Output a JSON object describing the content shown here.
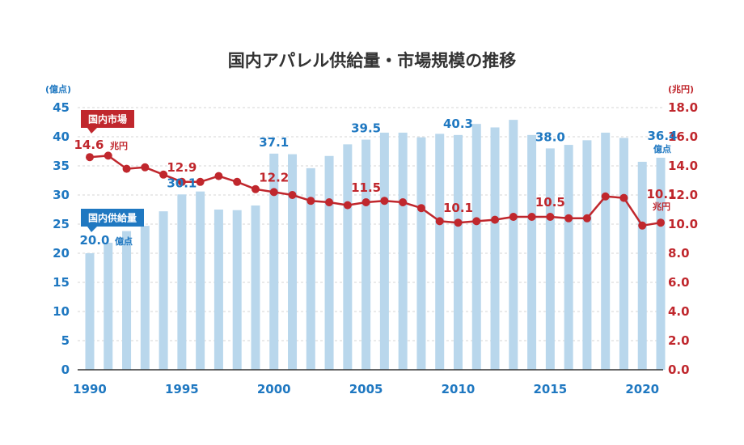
{
  "chart_data": {
    "type": "bar+line",
    "title": "国内アパレル供給量・市場規模の推移",
    "x": [
      1990,
      1991,
      1992,
      1993,
      1994,
      1995,
      1996,
      1997,
      1998,
      1999,
      2000,
      2001,
      2002,
      2003,
      2004,
      2005,
      2006,
      2007,
      2008,
      2009,
      2010,
      2011,
      2012,
      2013,
      2014,
      2015,
      2016,
      2017,
      2018,
      2019,
      2020,
      2021
    ],
    "x_tick_labels": [
      "1990",
      "1995",
      "2000",
      "2005",
      "2010",
      "2015",
      "2020"
    ],
    "left_axis": {
      "unit": "(億点)",
      "ylim": [
        0,
        45
      ],
      "ticks": [
        "0",
        "5",
        "10",
        "15",
        "20",
        "25",
        "30",
        "35",
        "40",
        "45"
      ]
    },
    "right_axis": {
      "unit": "(兆円)",
      "ylim": [
        0,
        18
      ],
      "ticks": [
        "0.0",
        "2.0",
        "4.0",
        "6.0",
        "8.0",
        "10.0",
        "12.0",
        "14.0",
        "16.0",
        "18.0"
      ]
    },
    "series": [
      {
        "name": "国内供給量",
        "kind": "bar",
        "axis": "left",
        "color": "#b9d7ec",
        "values": [
          20.0,
          21.8,
          23.8,
          24.7,
          27.2,
          30.1,
          30.6,
          27.5,
          27.4,
          28.2,
          37.1,
          37.0,
          34.6,
          36.7,
          38.7,
          39.5,
          40.7,
          40.7,
          39.9,
          40.5,
          40.3,
          42.2,
          41.6,
          42.9,
          40.3,
          38.0,
          38.6,
          39.4,
          40.7,
          39.8,
          35.7,
          36.4
        ]
      },
      {
        "name": "国内市場",
        "kind": "line",
        "axis": "right",
        "color": "#c0272d",
        "values": [
          14.6,
          14.7,
          13.8,
          13.9,
          13.4,
          12.9,
          12.9,
          13.3,
          12.9,
          12.4,
          12.2,
          12.0,
          11.6,
          11.5,
          11.3,
          11.5,
          11.6,
          11.5,
          11.1,
          10.2,
          10.1,
          10.2,
          10.3,
          10.5,
          10.5,
          10.5,
          10.4,
          10.4,
          11.9,
          11.8,
          9.9,
          10.1
        ]
      }
    ],
    "bar_annotations": [
      {
        "year": 1990,
        "label": "20.0",
        "unit": "億点"
      },
      {
        "year": 1995,
        "label": "30.1"
      },
      {
        "year": 2000,
        "label": "37.1"
      },
      {
        "year": 2005,
        "label": "39.5"
      },
      {
        "year": 2010,
        "label": "40.3"
      },
      {
        "year": 2015,
        "label": "38.0"
      },
      {
        "year": 2021,
        "label": "36.4",
        "unit": "億点"
      }
    ],
    "line_annotations": [
      {
        "year": 1990,
        "label": "14.6",
        "unit": "兆円"
      },
      {
        "year": 1995,
        "label": "12.9"
      },
      {
        "year": 2000,
        "label": "12.2"
      },
      {
        "year": 2005,
        "label": "11.5"
      },
      {
        "year": 2010,
        "label": "10.1"
      },
      {
        "year": 2015,
        "label": "10.5"
      },
      {
        "year": 2021,
        "label": "10.1",
        "unit": "兆円"
      }
    ],
    "legend": {
      "market": "国内市場",
      "supply": "国内供給量"
    }
  }
}
